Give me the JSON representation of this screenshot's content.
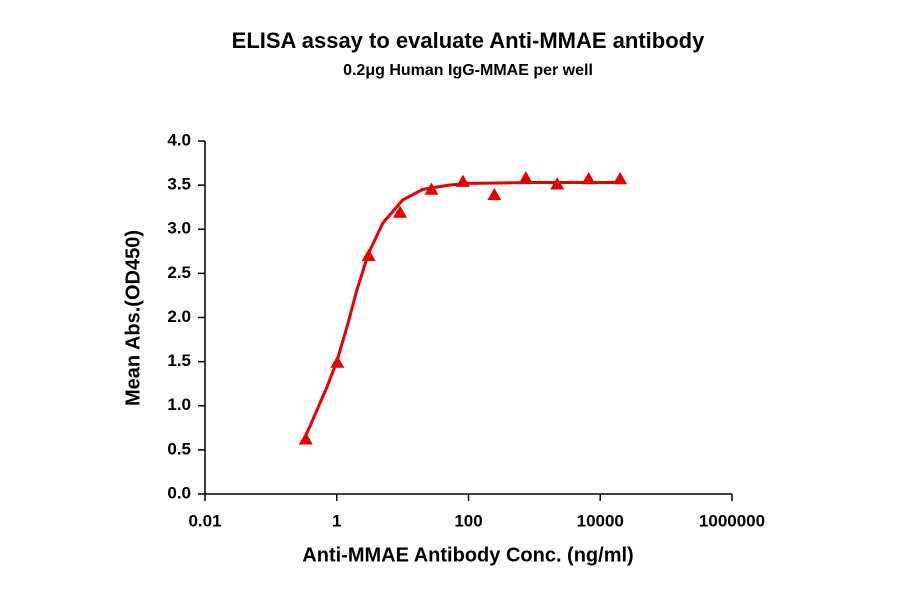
{
  "chart_data": {
    "type": "scatter",
    "title": "ELISA assay to evaluate Anti-MMAE antibody",
    "subtitle": "0.2μg Human IgG-MMAE per well",
    "x_label": "Anti-MMAE Antibody Conc. (ng/ml)",
    "y_label": "Mean Abs.(OD450)",
    "x_scale": "log",
    "xlim": [
      0.01,
      1000000
    ],
    "xticks": [
      0.01,
      1,
      100,
      10000,
      1000000
    ],
    "ylim": [
      0,
      4
    ],
    "yticks": [
      {
        "value": 0,
        "label": "0.0"
      },
      0.5,
      {
        "value": 1,
        "label": "1.0"
      },
      1.5,
      {
        "value": 2,
        "label": "2.0"
      },
      2.5,
      {
        "value": 3,
        "label": "3.0"
      },
      3.5,
      {
        "value": 4,
        "label": "4.0"
      }
    ],
    "grid": false,
    "series": [
      {
        "color": "#e60000",
        "marker": "triangle",
        "x": [
          0.339,
          1.02,
          3.05,
          9.14,
          27.4,
          82.3,
          247,
          741,
          2222,
          6667,
          20000
        ],
        "values": [
          0.62,
          1.49,
          2.7,
          3.19,
          3.45,
          3.54,
          3.39,
          3.58,
          3.51,
          3.57,
          3.57
        ]
      },
      {
        "color": "#e60000",
        "marker": "line",
        "x": [
          0.3,
          0.4,
          0.5,
          0.7,
          1,
          1.5,
          2,
          3,
          5,
          10,
          20,
          50,
          100,
          1000,
          20000
        ],
        "values": [
          0.58,
          0.78,
          0.95,
          1.2,
          1.5,
          1.95,
          2.3,
          2.72,
          3.07,
          3.33,
          3.45,
          3.5,
          3.52,
          3.53,
          3.53
        ]
      }
    ]
  }
}
